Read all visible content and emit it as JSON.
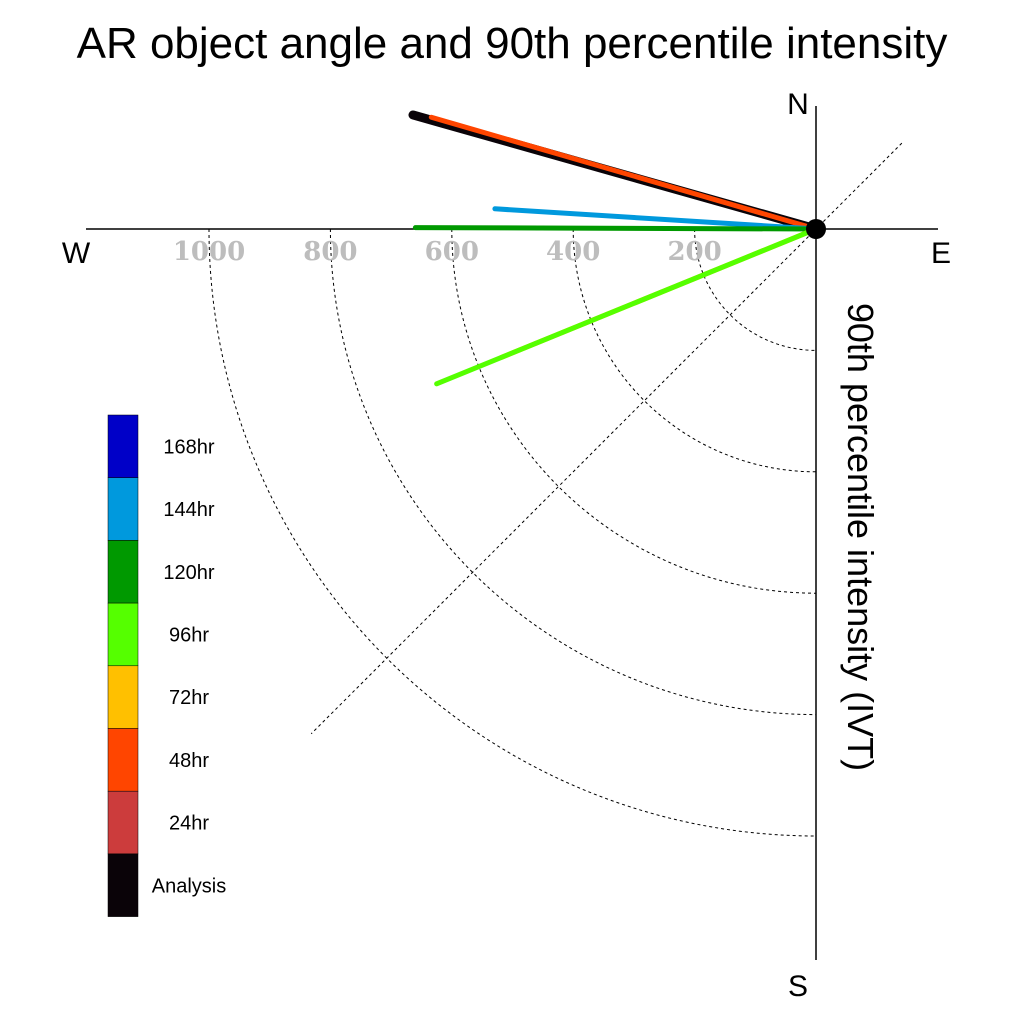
{
  "chart_data": {
    "type": "polar-vector",
    "title": "AR object angle and 90th percentile intensity",
    "radial_axis_label": "90th percentile intensity (IVT)",
    "compass_labels": {
      "north": "N",
      "south": "S",
      "east": "E",
      "west": "W"
    },
    "radial_ticks": [
      200,
      400,
      600,
      800,
      1000
    ],
    "rmax": 1200,
    "angle_convention": "degrees counter-clockwise from E",
    "series": [
      {
        "name": "Analysis",
        "color": "#0a0308",
        "angle_deg": 164.2,
        "intensity": 690,
        "width": 9
      },
      {
        "name": "48hr",
        "color": "#ff4500",
        "angle_deg": 163.8,
        "intensity": 660,
        "width": 5
      },
      {
        "name": "144hr",
        "color": "#0099dd",
        "angle_deg": 176.4,
        "intensity": 530,
        "width": 5
      },
      {
        "name": "120hr",
        "color": "#009900",
        "angle_deg": 179.8,
        "intensity": 660,
        "width": 5
      },
      {
        "name": "72hr",
        "color": "#ffc000",
        "angle_deg": 202.2,
        "intensity": 560,
        "width": 5
      },
      {
        "name": "96hr",
        "color": "#55ff00",
        "angle_deg": 202.2,
        "intensity": 675,
        "width": 5
      }
    ],
    "legend": [
      {
        "label": "168hr",
        "color": "#0000c8"
      },
      {
        "label": "144hr",
        "color": "#0099dd"
      },
      {
        "label": "120hr",
        "color": "#009900"
      },
      {
        "label": "96hr",
        "color": "#55ff00"
      },
      {
        "label": "72hr",
        "color": "#ffc000"
      },
      {
        "label": "48hr",
        "color": "#ff4500"
      },
      {
        "label": "24hr",
        "color": "#cc3c3c"
      },
      {
        "label": "Analysis",
        "color": "#0a0308"
      }
    ]
  }
}
